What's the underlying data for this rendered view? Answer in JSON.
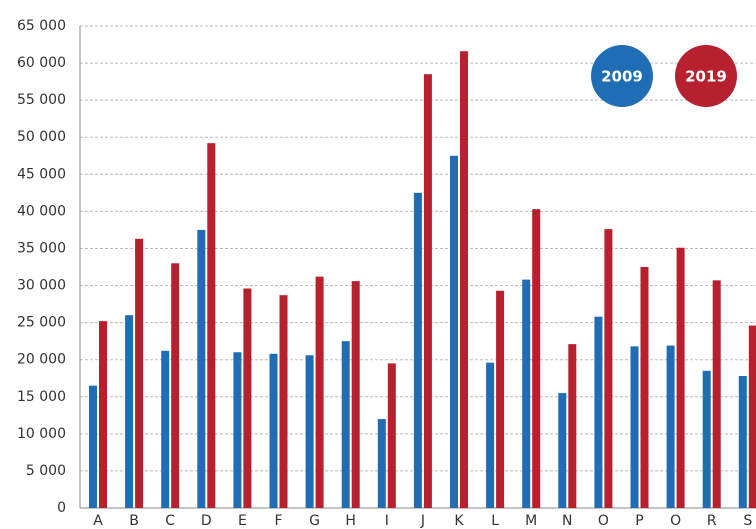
{
  "chart_data": {
    "type": "bar",
    "categories": [
      "A",
      "B",
      "C",
      "D",
      "E",
      "F",
      "G",
      "H",
      "I",
      "J",
      "K",
      "L",
      "M",
      "N",
      "O",
      "P",
      "O",
      "R",
      "S"
    ],
    "series": [
      {
        "name": "2009",
        "color": "#1f6db5",
        "values": [
          16500,
          26000,
          21200,
          37500,
          21000,
          20800,
          20600,
          22500,
          12000,
          42500,
          47500,
          19600,
          30800,
          15500,
          25800,
          21800,
          21900,
          18500,
          17800
        ]
      },
      {
        "name": "2019",
        "color": "#b7202e",
        "values": [
          25200,
          36300,
          33000,
          49200,
          29600,
          28700,
          31200,
          30600,
          19500,
          58500,
          61600,
          29300,
          40300,
          22100,
          37600,
          32500,
          35100,
          30700,
          24600
        ]
      }
    ],
    "ylim": [
      0,
      65000
    ],
    "yticks": [
      0,
      {
        "value": 5000,
        "label": "5 000"
      },
      {
        "value": 10000,
        "label": "10 000"
      },
      {
        "value": 15000,
        "label": "15 000"
      },
      {
        "value": 20000,
        "label": "20 000"
      },
      {
        "value": 25000,
        "label": "25 000"
      },
      {
        "value": 30000,
        "label": "30 000"
      },
      {
        "value": 35000,
        "label": "35 000"
      },
      {
        "value": 40000,
        "label": "40 000"
      },
      {
        "value": 45000,
        "label": "45 000"
      },
      {
        "value": 50000,
        "label": "50 000"
      },
      {
        "value": 55000,
        "label": "55 000"
      },
      {
        "value": 60000,
        "label": "60 000"
      },
      {
        "value": 65000,
        "label": "65 000"
      }
    ],
    "grid": true
  }
}
